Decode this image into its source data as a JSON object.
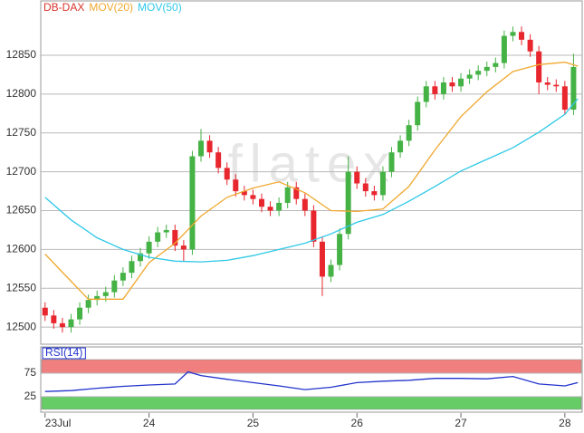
{
  "chart_data": [
    {
      "type": "candlestick",
      "watermark": "flatex",
      "xlim": [
        -1,
        124
      ],
      "ylim": [
        12478,
        12920
      ],
      "xticks": [
        {
          "value": 0,
          "label": "23Jul"
        },
        {
          "value": 24,
          "label": "24"
        },
        {
          "value": 48,
          "label": "25"
        },
        {
          "value": 72,
          "label": "26"
        },
        {
          "value": 96,
          "label": "27"
        },
        {
          "value": 120,
          "label": "28"
        }
      ],
      "yticks": [
        12500,
        12550,
        12600,
        12650,
        12700,
        12750,
        12800,
        12850
      ],
      "grid": true,
      "series": [
        {
          "name": "DB-DAX",
          "type": "candlestick",
          "color": "#d9342b",
          "up_color": "#45b245",
          "down_color": "#e8262e",
          "x": [
            0,
            2,
            4,
            6,
            8,
            10,
            12,
            14,
            16,
            18,
            20,
            22,
            24,
            26,
            28,
            30,
            32,
            34,
            36,
            38,
            40,
            42,
            44,
            46,
            48,
            50,
            52,
            54,
            56,
            58,
            60,
            62,
            64,
            66,
            68,
            70,
            72,
            74,
            76,
            78,
            80,
            82,
            84,
            86,
            88,
            90,
            92,
            94,
            96,
            98,
            100,
            102,
            104,
            106,
            108,
            110,
            112,
            114,
            116,
            118,
            120,
            122
          ],
          "open": [
            12525,
            12515,
            12505,
            12500,
            12510,
            12525,
            12535,
            12540,
            12545,
            12560,
            12570,
            12585,
            12595,
            12610,
            12622,
            12625,
            12605,
            12600,
            12720,
            12740,
            12725,
            12705,
            12690,
            12675,
            12670,
            12665,
            12655,
            12650,
            12660,
            12680,
            12665,
            12650,
            12610,
            12565,
            12580,
            12620,
            12700,
            12685,
            12675,
            12670,
            12700,
            12725,
            12740,
            12760,
            12790,
            12810,
            12800,
            12815,
            12810,
            12820,
            12825,
            12830,
            12835,
            12840,
            12875,
            12880,
            12870,
            12855,
            12815,
            12812,
            12810,
            12780
          ],
          "high": [
            12532,
            12522,
            12512,
            12517,
            12532,
            12542,
            12547,
            12552,
            12567,
            12577,
            12592,
            12602,
            12617,
            12629,
            12632,
            12632,
            12612,
            12727,
            12755,
            12747,
            12732,
            12712,
            12697,
            12682,
            12677,
            12672,
            12662,
            12667,
            12687,
            12687,
            12672,
            12657,
            12617,
            12587,
            12627,
            12720,
            12707,
            12692,
            12682,
            12707,
            12732,
            12747,
            12767,
            12797,
            12817,
            12817,
            12822,
            12822,
            12827,
            12832,
            12837,
            12842,
            12847,
            12882,
            12887,
            12887,
            12877,
            12862,
            12822,
            12819,
            12817,
            12852
          ],
          "low": [
            12508,
            12498,
            12493,
            12493,
            12503,
            12518,
            12528,
            12533,
            12538,
            12553,
            12563,
            12578,
            12588,
            12603,
            12615,
            12598,
            12585,
            12593,
            12713,
            12718,
            12698,
            12683,
            12668,
            12663,
            12658,
            12648,
            12643,
            12643,
            12653,
            12658,
            12643,
            12603,
            12540,
            12558,
            12573,
            12613,
            12678,
            12668,
            12663,
            12663,
            12693,
            12718,
            12733,
            12753,
            12783,
            12793,
            12793,
            12803,
            12803,
            12813,
            12818,
            12823,
            12828,
            12833,
            12868,
            12863,
            12848,
            12800,
            12805,
            12803,
            12773,
            12773
          ],
          "close": [
            12515,
            12505,
            12500,
            12510,
            12525,
            12535,
            12540,
            12545,
            12560,
            12570,
            12585,
            12595,
            12610,
            12622,
            12625,
            12605,
            12600,
            12720,
            12740,
            12725,
            12705,
            12690,
            12675,
            12670,
            12665,
            12655,
            12650,
            12660,
            12680,
            12665,
            12650,
            12610,
            12565,
            12580,
            12620,
            12700,
            12685,
            12675,
            12670,
            12700,
            12725,
            12740,
            12760,
            12790,
            12810,
            12800,
            12815,
            12810,
            12820,
            12825,
            12830,
            12835,
            12840,
            12875,
            12880,
            12870,
            12855,
            12815,
            12812,
            12810,
            12780,
            12835
          ]
        },
        {
          "name": "MOV(20)",
          "type": "line",
          "color": "#f0a830",
          "x": [
            0,
            6,
            10,
            18,
            24,
            30,
            36,
            42,
            48,
            54,
            60,
            66,
            72,
            78,
            84,
            90,
            96,
            102,
            108,
            114,
            120,
            123
          ],
          "values": [
            12594,
            12559,
            12536,
            12536,
            12583,
            12608,
            12643,
            12667,
            12679,
            12687,
            12673,
            12650,
            12649,
            12652,
            12681,
            12728,
            12771,
            12803,
            12829,
            12838,
            12841,
            12836
          ]
        },
        {
          "name": "MOV(50)",
          "type": "line",
          "color": "#2ec8e8",
          "x": [
            0,
            6,
            12,
            18,
            24,
            30,
            36,
            42,
            48,
            54,
            60,
            66,
            72,
            78,
            84,
            90,
            96,
            102,
            108,
            114,
            120,
            123
          ],
          "values": [
            12667,
            12638,
            12615,
            12600,
            12590,
            12585,
            12584,
            12586,
            12592,
            12600,
            12608,
            12620,
            12635,
            12645,
            12662,
            12681,
            12701,
            12716,
            12731,
            12751,
            12774,
            12794
          ]
        }
      ]
    },
    {
      "type": "line",
      "xlim": [
        -1,
        124
      ],
      "ylim": [
        -8,
        131
      ],
      "yticks": [
        25,
        75
      ],
      "bands": [
        {
          "from": 75,
          "to": 104,
          "color": "#f08080"
        },
        {
          "from": -2,
          "to": 25,
          "color": "#66cc66"
        }
      ],
      "series": [
        {
          "name": "RSI(14)",
          "color": "#2233cc",
          "x": [
            0,
            6,
            12,
            18,
            24,
            30,
            33,
            36,
            42,
            48,
            54,
            60,
            66,
            72,
            78,
            84,
            90,
            96,
            102,
            108,
            114,
            120,
            123
          ],
          "values": [
            36,
            38,
            43,
            47,
            50,
            52,
            78,
            70,
            62,
            55,
            48,
            40,
            45,
            55,
            58,
            60,
            64,
            64,
            63,
            68,
            52,
            48,
            55
          ]
        }
      ]
    }
  ]
}
